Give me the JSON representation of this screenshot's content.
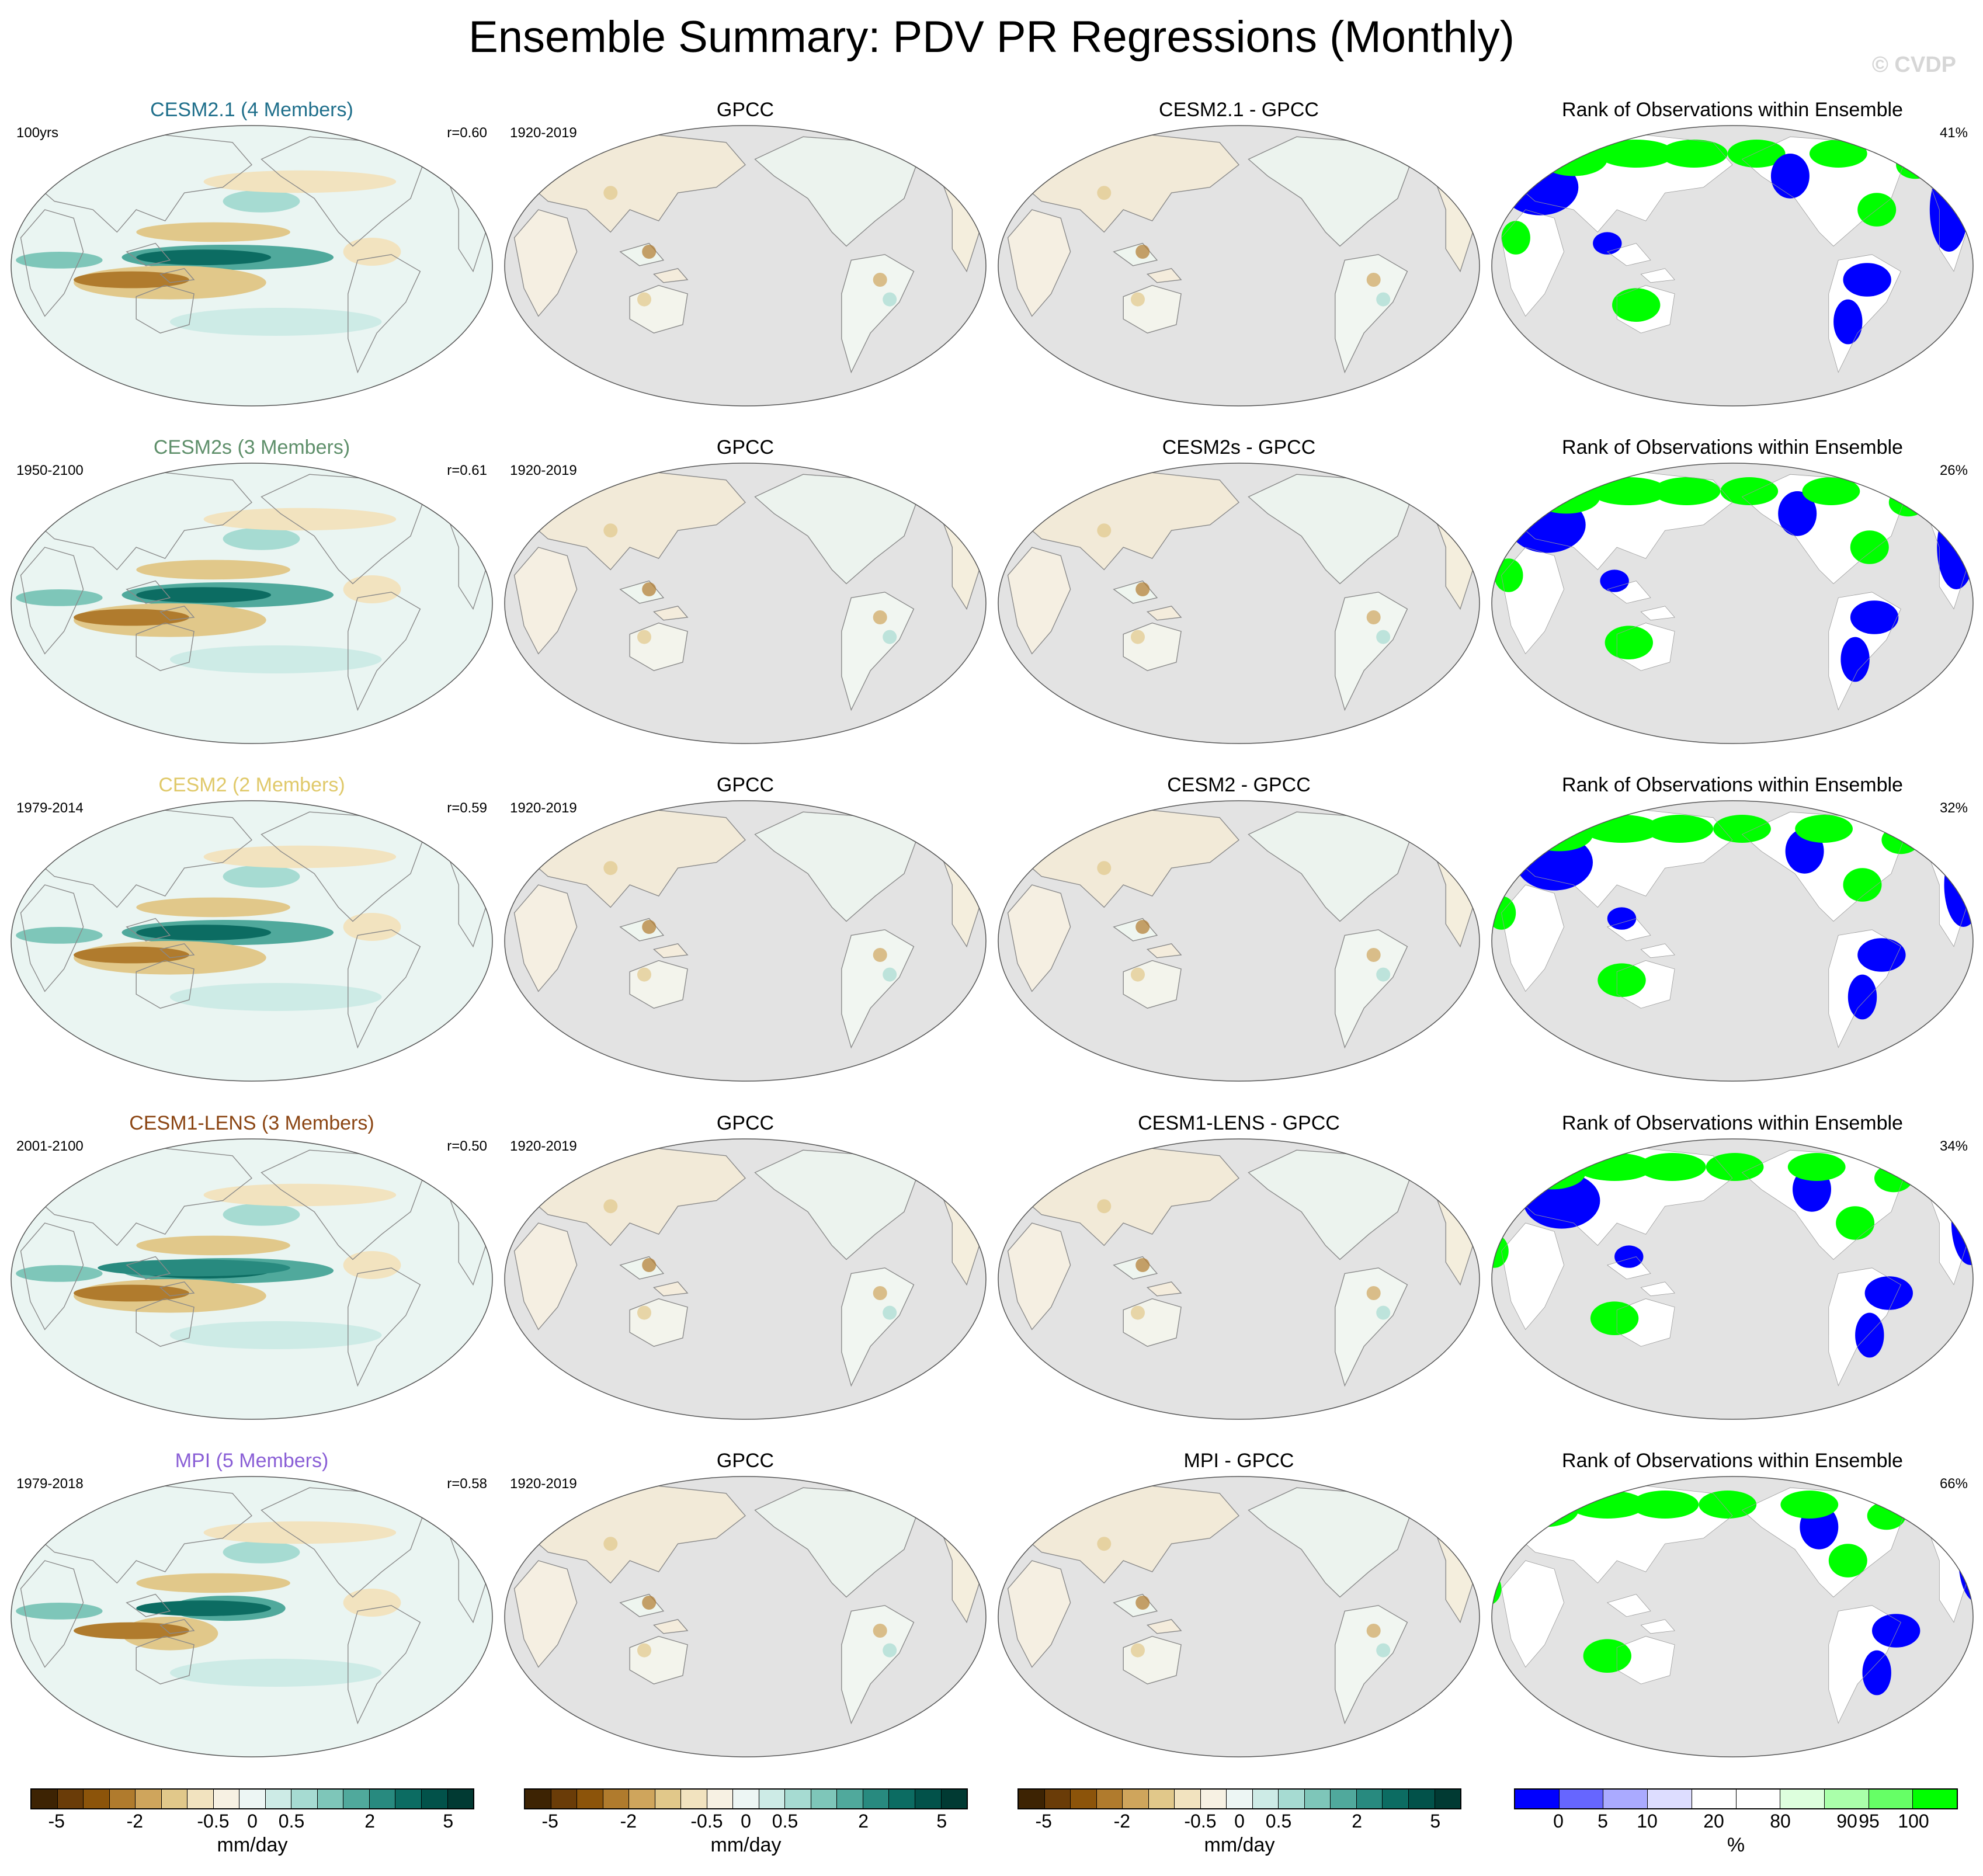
{
  "header": {
    "title": "Ensemble Summary: PDV PR Regressions (Monthly)",
    "credit": "© CVDP"
  },
  "rows": [
    {
      "model_title": "CESM2.1 (4 Members)",
      "model_color": "#1f6f8b",
      "model_period": "100yrs",
      "correlation": "r=0.60",
      "obs_title": "GPCC",
      "obs_period": "1920-2019",
      "diff_title": "CESM2.1 - GPCC",
      "rank_title": "Rank of Observations within Ensemble",
      "rank_pct": "41%"
    },
    {
      "model_title": "CESM2s (3 Members)",
      "model_color": "#5e8f6a",
      "model_period": "1950-2100",
      "correlation": "r=0.61",
      "obs_title": "GPCC",
      "obs_period": "1920-2019",
      "diff_title": "CESM2s - GPCC",
      "rank_title": "Rank of Observations within Ensemble",
      "rank_pct": "26%"
    },
    {
      "model_title": "CESM2 (2 Members)",
      "model_color": "#e0c96a",
      "model_period": "1979-2014",
      "correlation": "r=0.59",
      "obs_title": "GPCC",
      "obs_period": "1920-2019",
      "diff_title": "CESM2 - GPCC",
      "rank_title": "Rank of Observations within Ensemble",
      "rank_pct": "32%"
    },
    {
      "model_title": "CESM1-LENS (3 Members)",
      "model_color": "#8b4513",
      "model_period": "2001-2100",
      "correlation": "r=0.50",
      "obs_title": "GPCC",
      "obs_period": "1920-2019",
      "diff_title": "CESM1-LENS - GPCC",
      "rank_title": "Rank of Observations within Ensemble",
      "rank_pct": "34%"
    },
    {
      "model_title": "MPI (5 Members)",
      "model_color": "#8a5fd6",
      "model_period": "1979-2018",
      "correlation": "r=0.58",
      "obs_title": "GPCC",
      "obs_period": "1920-2019",
      "diff_title": "MPI - GPCC",
      "rank_title": "Rank of Observations within Ensemble",
      "rank_pct": "66%"
    }
  ],
  "colorbars": [
    {
      "name": "model",
      "label": "mm/day",
      "colors": [
        "#3d2303",
        "#6a3c08",
        "#8c540a",
        "#b07b2d",
        "#cfa55c",
        "#e1c88a",
        "#f2e3bf",
        "#f7f1e3",
        "#edf6f4",
        "#cdebe6",
        "#a6dbd2",
        "#7ec6b9",
        "#50a99c",
        "#288a7f",
        "#0c6c62",
        "#02524a",
        "#013a33"
      ],
      "ticks": [
        {
          "v": "-5",
          "i": 1
        },
        {
          "v": "-2",
          "i": 4
        },
        {
          "v": "-0.5",
          "i": 7
        },
        {
          "v": "0",
          "i": 8.5
        },
        {
          "v": "0.5",
          "i": 10
        },
        {
          "v": "2",
          "i": 13
        },
        {
          "v": "5",
          "i": 16
        }
      ]
    },
    {
      "name": "obs",
      "label": "mm/day",
      "colors": [
        "#3d2303",
        "#6a3c08",
        "#8c540a",
        "#b07b2d",
        "#cfa55c",
        "#e1c88a",
        "#f2e3bf",
        "#f7f1e3",
        "#edf6f4",
        "#cdebe6",
        "#a6dbd2",
        "#7ec6b9",
        "#50a99c",
        "#288a7f",
        "#0c6c62",
        "#02524a",
        "#013a33"
      ],
      "ticks": [
        {
          "v": "-5",
          "i": 1
        },
        {
          "v": "-2",
          "i": 4
        },
        {
          "v": "-0.5",
          "i": 7
        },
        {
          "v": "0",
          "i": 8.5
        },
        {
          "v": "0.5",
          "i": 10
        },
        {
          "v": "2",
          "i": 13
        },
        {
          "v": "5",
          "i": 16
        }
      ]
    },
    {
      "name": "diff",
      "label": "mm/day",
      "colors": [
        "#3d2303",
        "#6a3c08",
        "#8c540a",
        "#b07b2d",
        "#cfa55c",
        "#e1c88a",
        "#f2e3bf",
        "#f7f1e3",
        "#edf6f4",
        "#cdebe6",
        "#a6dbd2",
        "#7ec6b9",
        "#50a99c",
        "#288a7f",
        "#0c6c62",
        "#02524a",
        "#013a33"
      ],
      "ticks": [
        {
          "v": "-5",
          "i": 1
        },
        {
          "v": "-2",
          "i": 4
        },
        {
          "v": "-0.5",
          "i": 7
        },
        {
          "v": "0",
          "i": 8.5
        },
        {
          "v": "0.5",
          "i": 10
        },
        {
          "v": "2",
          "i": 13
        },
        {
          "v": "5",
          "i": 16
        }
      ]
    },
    {
      "name": "rank",
      "label": "%",
      "colors": [
        "#0000ff",
        "#6666ff",
        "#aaaaff",
        "#ddddff",
        "#ffffff",
        "#ffffff",
        "#ddffdd",
        "#aaffaa",
        "#66ff66",
        "#00ff00"
      ],
      "ticks": [
        {
          "v": "0",
          "i": 1
        },
        {
          "v": "5",
          "i": 2
        },
        {
          "v": "10",
          "i": 3
        },
        {
          "v": "20",
          "i": 4.5
        },
        {
          "v": "80",
          "i": 6
        },
        {
          "v": "90",
          "i": 7.5
        },
        {
          "v": "95",
          "i": 8
        },
        {
          "v": "100",
          "i": 9
        }
      ]
    }
  ],
  "colors": {
    "ocean_gray": "#e3e3e3",
    "land_line": "#8a8a8a",
    "rank_low": "#0000ff",
    "rank_high": "#00ff00"
  }
}
